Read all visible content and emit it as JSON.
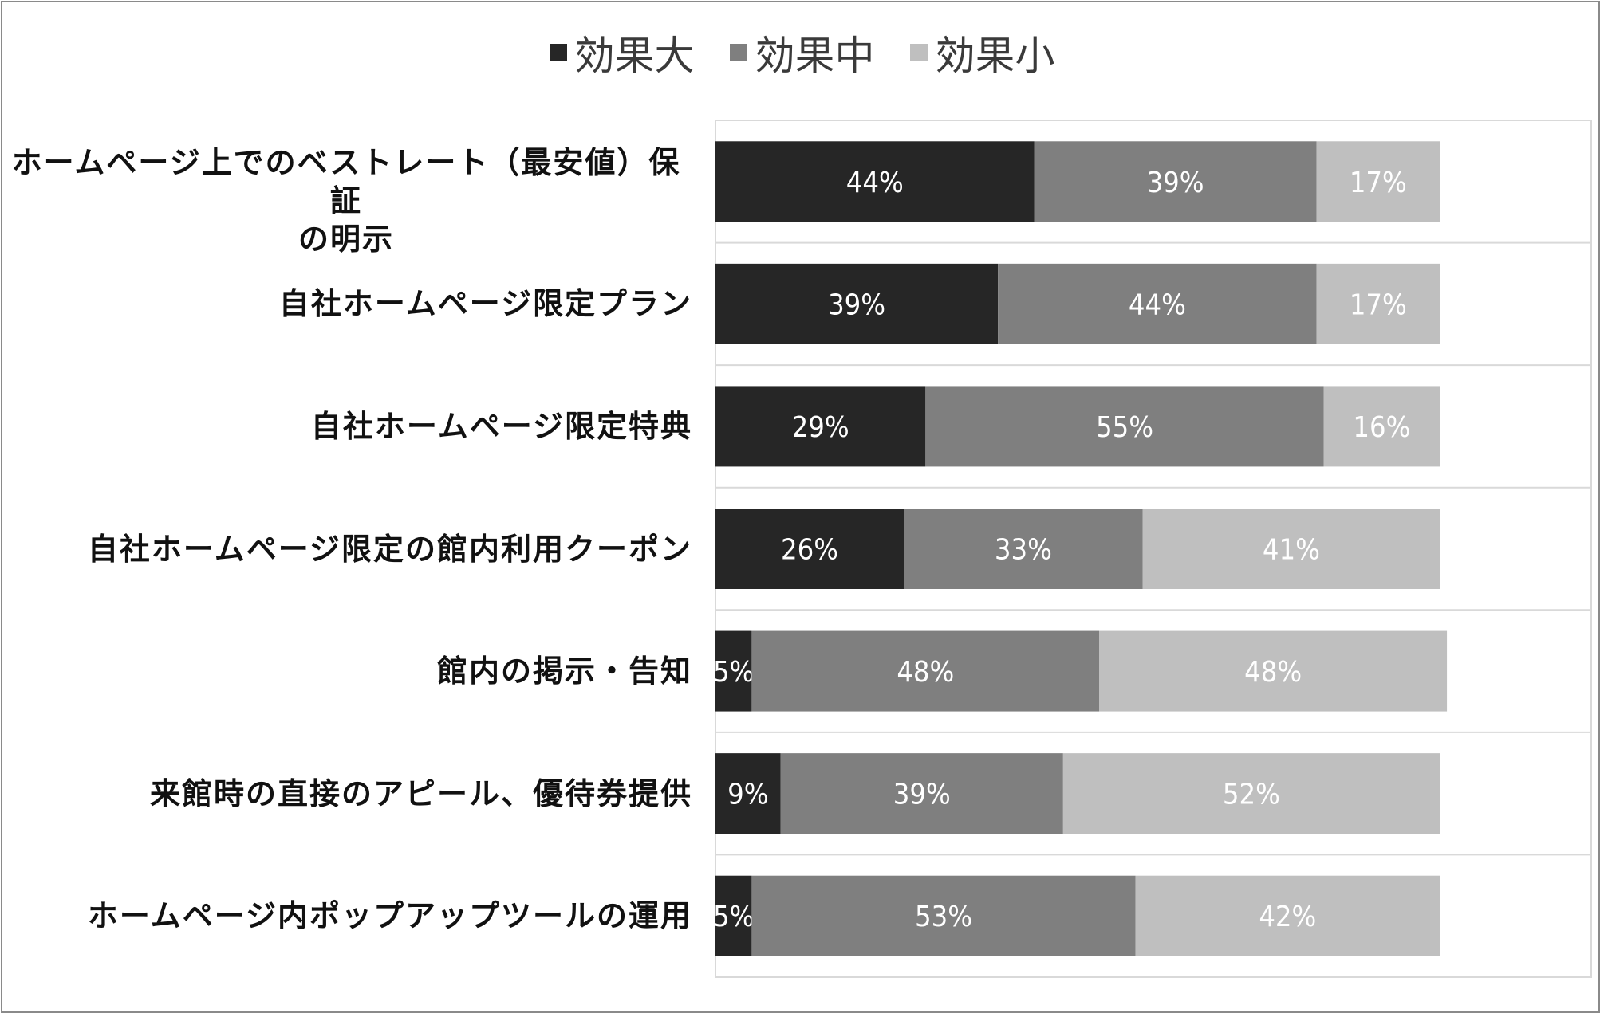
{
  "chart_data": {
    "type": "bar",
    "orientation": "horizontal",
    "stacked": true,
    "percent": true,
    "title": "",
    "xlabel": "",
    "ylabel": "",
    "xlim": [
      0,
      100
    ],
    "grid": false,
    "legend_position": "top",
    "categories": [
      "ホームページ上でのベストレート（最安値）保証の明示",
      "自社ホームページ限定プラン",
      "自社ホームページ限定特典",
      "自社ホームページ限定の館内利用クーポン",
      "館内の掲示・告知",
      "来館時の直接のアピール、優待券提供",
      "ホームページ内ポップアップツールの運用"
    ],
    "category_label_lines": [
      [
        "ホームページ上でのベストレート（最安値）保証",
        "の明示"
      ],
      [
        "自社ホームページ限定プラン"
      ],
      [
        "自社ホームページ限定特典"
      ],
      [
        "自社ホームページ限定の館内利用クーポン"
      ],
      [
        "館内の掲示・告知"
      ],
      [
        "来館時の直接のアピール、優待券提供"
      ],
      [
        "ホームページ内ポップアップツールの運用"
      ]
    ],
    "series": [
      {
        "name": "効果大",
        "color": "#262626",
        "values": [
          44,
          39,
          29,
          26,
          5,
          9,
          5
        ]
      },
      {
        "name": "効果中",
        "color": "#7f7f7f",
        "values": [
          39,
          44,
          55,
          33,
          48,
          39,
          53
        ]
      },
      {
        "name": "効果小",
        "color": "#bfbfbf",
        "values": [
          17,
          17,
          16,
          41,
          48,
          52,
          42
        ]
      }
    ],
    "data_labels": [
      [
        "44%",
        "39%",
        "17%"
      ],
      [
        "39%",
        "44%",
        "17%"
      ],
      [
        "29%",
        "55%",
        "16%"
      ],
      [
        "26%",
        "33%",
        "41%"
      ],
      [
        "5%",
        "48%",
        "48%"
      ],
      [
        "9%",
        "39%",
        "52%"
      ],
      [
        "5%",
        "53%",
        "42%"
      ]
    ]
  }
}
